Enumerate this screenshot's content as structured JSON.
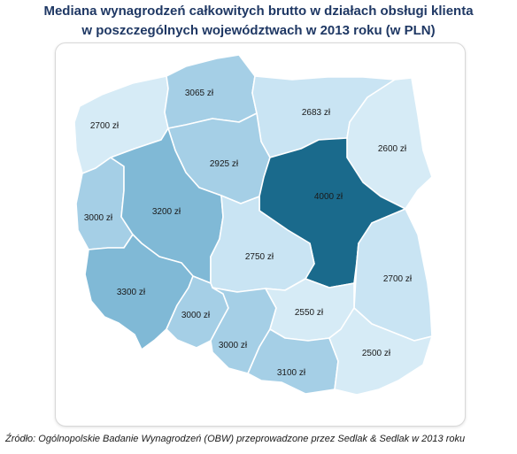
{
  "title_line1": "Mediana wynagrodzeń całkowitych brutto w działach obsługi klienta",
  "title_line2": "w poszczególnych województwach w 2013 roku (w PLN)",
  "source": "Źródło: Ogólnopolskie Badanie Wynagrodzeń (OBW) przeprowadzone przez Sedlak & Sedlak w 2013 roku",
  "regions": [
    {
      "id": "zachodniopomorskie",
      "label": "2700 zł",
      "color": "#d6ebf6"
    },
    {
      "id": "pomorskie",
      "label": "3065 zł",
      "color": "#a5cfe6"
    },
    {
      "id": "warminsko-mazurskie",
      "label": "2683 zł",
      "color": "#c9e4f3"
    },
    {
      "id": "podlaskie",
      "label": "2600 zł",
      "color": "#d6ebf6"
    },
    {
      "id": "kujawsko-pomorskie",
      "label": "2925 zł",
      "color": "#a5cfe6"
    },
    {
      "id": "mazowieckie",
      "label": "4000 zł",
      "color": "#1a6a8c"
    },
    {
      "id": "lubuskie",
      "label": "3000 zł",
      "color": "#a5cfe6"
    },
    {
      "id": "wielkopolskie",
      "label": "3200 zł",
      "color": "#80b9d6"
    },
    {
      "id": "lodzkie",
      "label": "2750 zł",
      "color": "#c9e4f3"
    },
    {
      "id": "lubelskie",
      "label": "2700 zł",
      "color": "#c9e4f3"
    },
    {
      "id": "dolnoslaskie",
      "label": "3300 zł",
      "color": "#80b9d6"
    },
    {
      "id": "opolskie",
      "label": "3000 zł",
      "color": "#a5cfe6"
    },
    {
      "id": "slaskie",
      "label": "3000 zł",
      "color": "#a5cfe6"
    },
    {
      "id": "swietokrzyskie",
      "label": "2550 zł",
      "color": "#d6ebf6"
    },
    {
      "id": "malopolskie",
      "label": "3100 zł",
      "color": "#a5cfe6"
    },
    {
      "id": "podkarpackie",
      "label": "2500 zł",
      "color": "#d6ebf6"
    }
  ]
}
